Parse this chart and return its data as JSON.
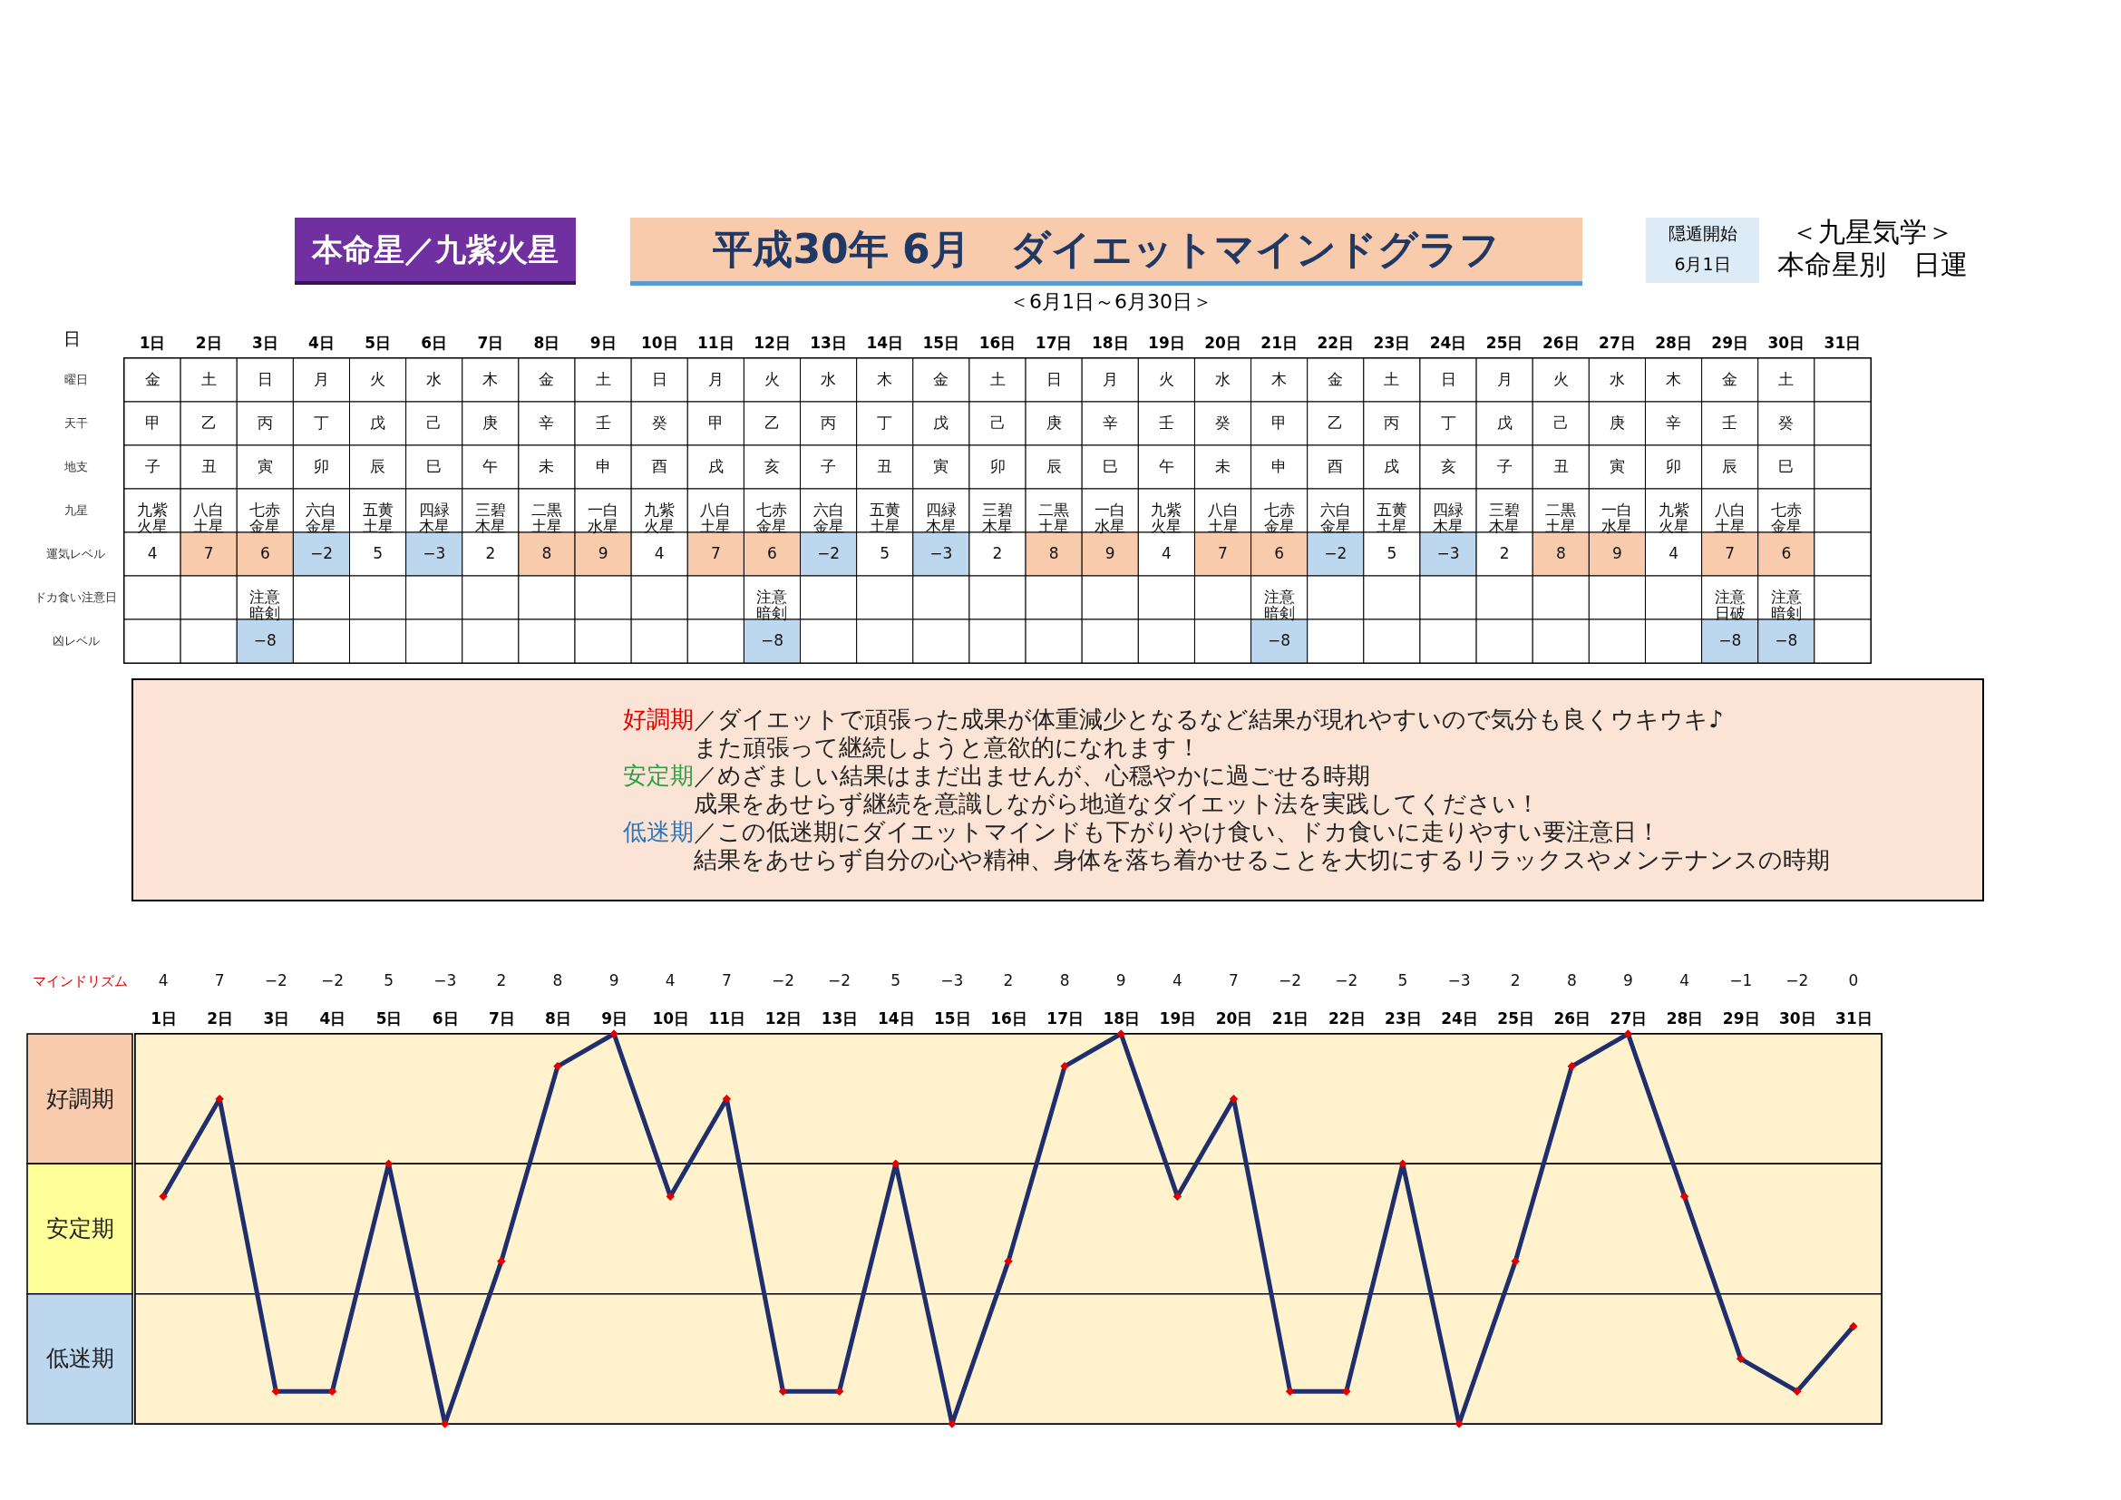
{
  "chart_data": [
    {
      "type": "heatmap",
      "title": "平成30年 6月　ダイエットマインドグラフ",
      "subtitle": "＜6月1日～6月30日＞",
      "xlabel": "日",
      "annotations": [
        "本命星／九紫火星",
        "隠遁開始",
        "6月1日",
        "＜九星気学＞",
        "本命星別　日運",
        "好調期／ダイエットで頑張った成果が体重減少となるなど結果が現れやすいので気分も良くウキウキ♪",
        "また頑張って継続しようと意欲的になれます！",
        "安定期／めざましい結果はまだ出ませんが、心穏やかに過ごせる時期",
        "成果をあせらず継続を意識しながら地道なダイエット法を実践してください！",
        "低迷期／この低迷期にダイエットマインドも下がりやけ食い、ドカ食いに走りやすい要注意日！",
        "結果をあせらず自分の心や精神、身体を落ち着かせることを大切にするリラックスやメンテナンスの時期"
      ],
      "categories": [
        "1日",
        "2日",
        "3日",
        "4日",
        "5日",
        "6日",
        "7日",
        "8日",
        "9日",
        "10日",
        "11日",
        "12日",
        "13日",
        "14日",
        "15日",
        "16日",
        "17日",
        "18日",
        "19日",
        "20日",
        "21日",
        "22日",
        "23日",
        "24日",
        "25日",
        "26日",
        "27日",
        "28日",
        "29日",
        "30日",
        "31日"
      ],
      "y_categories": [
        "曜日",
        "天干",
        "地支",
        "九星",
        "運気レベル",
        "ドカ食い注意日",
        "凶レベル"
      ],
      "cells": [
        [
          null,
          null,
          null,
          null,
          null,
          null,
          null,
          null,
          null,
          null,
          null,
          null,
          null,
          null,
          null,
          null,
          null,
          null,
          null,
          null,
          null,
          null,
          null,
          null,
          null,
          null,
          null,
          null,
          null,
          null,
          null
        ],
        [
          null,
          null,
          null,
          null,
          null,
          null,
          null,
          null,
          null,
          null,
          null,
          null,
          null,
          null,
          null,
          null,
          null,
          null,
          null,
          null,
          null,
          null,
          null,
          null,
          null,
          null,
          null,
          null,
          null,
          null,
          null
        ],
        [
          null,
          null,
          null,
          null,
          null,
          null,
          null,
          null,
          null,
          null,
          null,
          null,
          null,
          null,
          null,
          null,
          null,
          null,
          null,
          null,
          null,
          null,
          null,
          null,
          null,
          null,
          null,
          null,
          null,
          null,
          null
        ],
        [
          null,
          null,
          null,
          null,
          null,
          null,
          null,
          null,
          null,
          null,
          null,
          null,
          null,
          null,
          null,
          null,
          null,
          null,
          null,
          null,
          null,
          null,
          null,
          null,
          null,
          null,
          null,
          null,
          null,
          null,
          null
        ],
        [
          4,
          7,
          6,
          -2,
          5,
          -3,
          2,
          8,
          9,
          4,
          7,
          6,
          -2,
          5,
          -3,
          2,
          8,
          9,
          4,
          7,
          6,
          -2,
          5,
          -3,
          2,
          8,
          9,
          4,
          7,
          6,
          null
        ],
        [
          null,
          null,
          null,
          null,
          null,
          null,
          null,
          null,
          null,
          null,
          null,
          null,
          null,
          null,
          null,
          null,
          null,
          null,
          null,
          null,
          null,
          null,
          null,
          null,
          null,
          null,
          null,
          null,
          null,
          null,
          null
        ],
        [
          null,
          null,
          -8,
          null,
          null,
          null,
          null,
          null,
          null,
          null,
          null,
          -8,
          null,
          null,
          null,
          null,
          null,
          null,
          null,
          null,
          -8,
          null,
          null,
          null,
          null,
          null,
          null,
          null,
          -8,
          -8,
          null
        ]
      ],
      "cell_labels": [
        [
          "金",
          "土",
          "日",
          "月",
          "火",
          "水",
          "木",
          "金",
          "土",
          "日",
          "月",
          "火",
          "水",
          "木",
          "金",
          "土",
          "日",
          "月",
          "火",
          "水",
          "木",
          "金",
          "土",
          "日",
          "月",
          "火",
          "水",
          "木",
          "金",
          "土",
          null
        ],
        [
          "甲",
          "乙",
          "丙",
          "丁",
          "戊",
          "己",
          "庚",
          "辛",
          "壬",
          "癸",
          "甲",
          "乙",
          "丙",
          "丁",
          "戊",
          "己",
          "庚",
          "辛",
          "壬",
          "癸",
          "甲",
          "乙",
          "丙",
          "丁",
          "戊",
          "己",
          "庚",
          "辛",
          "壬",
          "癸",
          null
        ],
        [
          "子",
          "丑",
          "寅",
          "卯",
          "辰",
          "巳",
          "午",
          "未",
          "申",
          "酉",
          "戌",
          "亥",
          "子",
          "丑",
          "寅",
          "卯",
          "辰",
          "巳",
          "午",
          "未",
          "申",
          "酉",
          "戌",
          "亥",
          "子",
          "丑",
          "寅",
          "卯",
          "辰",
          "巳",
          null
        ],
        [
          "九紫火星",
          "八白土星",
          "七赤金星",
          "六白金星",
          "五黄土星",
          "四緑木星",
          "三碧木星",
          "二黒土星",
          "一白水星",
          "九紫火星",
          "八白土星",
          "七赤金星",
          "六白金星",
          "五黄土星",
          "四緑木星",
          "三碧木星",
          "二黒土星",
          "一白水星",
          "九紫火星",
          "八白土星",
          "七赤金星",
          "六白金星",
          "五黄土星",
          "四緑木星",
          "三碧木星",
          "二黒土星",
          "一白水星",
          "九紫火星",
          "八白土星",
          "七赤金星",
          null
        ],
        [
          "4",
          "7",
          "6",
          "−2",
          "5",
          "−3",
          "2",
          "8",
          "9",
          "4",
          "7",
          "6",
          "−2",
          "5",
          "−3",
          "2",
          "8",
          "9",
          "4",
          "7",
          "6",
          "−2",
          "5",
          "−3",
          "2",
          "8",
          "9",
          "4",
          "7",
          "6",
          null
        ],
        [
          null,
          null,
          "注意暗剣",
          null,
          null,
          null,
          null,
          null,
          null,
          null,
          null,
          "注意暗剣",
          null,
          null,
          null,
          null,
          null,
          null,
          null,
          null,
          "注意暗剣",
          null,
          null,
          null,
          null,
          null,
          null,
          null,
          "注意日破",
          "注意暗剣",
          null
        ],
        [
          null,
          null,
          "−8",
          null,
          null,
          null,
          null,
          null,
          null,
          null,
          null,
          "−8",
          null,
          null,
          null,
          null,
          null,
          null,
          null,
          null,
          "−8",
          null,
          null,
          null,
          null,
          null,
          null,
          null,
          "−8",
          "−8",
          null
        ]
      ]
    },
    {
      "type": "line",
      "categories": [
        "1日",
        "2日",
        "3日",
        "4日",
        "5日",
        "6日",
        "7日",
        "8日",
        "9日",
        "10日",
        "11日",
        "12日",
        "13日",
        "14日",
        "15日",
        "16日",
        "17日",
        "18日",
        "19日",
        "20日",
        "21日",
        "22日",
        "23日",
        "24日",
        "25日",
        "26日",
        "27日",
        "28日",
        "29日",
        "30日",
        "31日"
      ],
      "series": [
        {
          "name": "マインドリズム",
          "color": "#1f2f6e",
          "values": [
            4,
            7,
            -2,
            -2,
            5,
            -3,
            2,
            8,
            9,
            4,
            7,
            -2,
            -2,
            5,
            -3,
            2,
            8,
            9,
            4,
            7,
            -2,
            -2,
            5,
            -3,
            2,
            8,
            9,
            4,
            -1,
            -2,
            0
          ]
        }
      ],
      "ylim": [
        -3,
        9
      ],
      "tick_labels": "x",
      "data_labels": true,
      "marker": "diamond",
      "bands": [
        {
          "axis": "y",
          "from": 5,
          "to": 9,
          "label": "好調期"
        },
        {
          "axis": "y",
          "from": 1,
          "to": 5,
          "label": "安定期"
        },
        {
          "axis": "y",
          "from": -3,
          "to": 1,
          "label": "低迷期"
        }
      ]
    }
  ]
}
